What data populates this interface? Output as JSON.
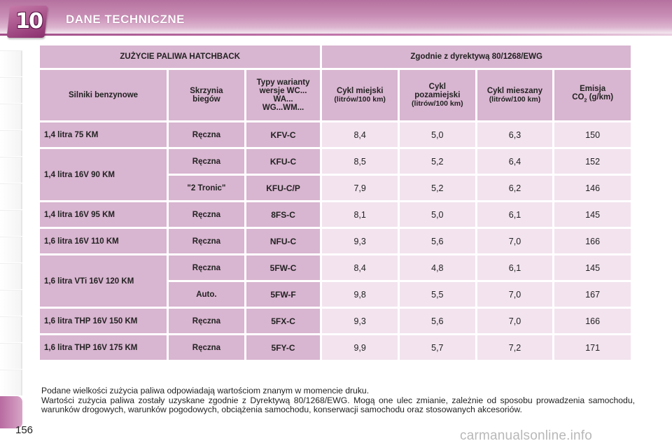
{
  "header": {
    "chapter": "10",
    "title": "DANE TECHNICZNE"
  },
  "table": {
    "top_headers": [
      "ZUŻYCIE PALIWA HATCHBACK",
      "Zgodnie z dyrektywą 80/1268/EWG"
    ],
    "col_headers": {
      "engine": "Silniki benzynowe",
      "gearbox": "Skrzynia biegów",
      "types": "Typy warianty wersje WC... WA... WG...WM...",
      "urban": "Cykl miejski",
      "urban_unit": "(litrów/100 km)",
      "extra": "Cykl pozamiejski",
      "extra_unit": "(litrów/100 km)",
      "combined": "Cykl mieszany",
      "combined_unit": "(litrów/100 km)",
      "emission": "Emisja",
      "emission_co": "CO",
      "emission_sub": "2",
      "emission_unit": "(g/km)"
    },
    "engines": [
      {
        "name": "1,4 litra 75 KM",
        "rows": [
          {
            "gearbox": "Ręczna",
            "code": "KFV-C",
            "urban": "8,4",
            "extra": "5,0",
            "combined": "6,3",
            "co2": "150"
          }
        ]
      },
      {
        "name": "1,4 litra 16V 90 KM",
        "rows": [
          {
            "gearbox": "Ręczna",
            "code": "KFU-C",
            "urban": "8,5",
            "extra": "5,2",
            "combined": "6,4",
            "co2": "152"
          },
          {
            "gearbox": "\"2 Tronic\"",
            "code": "KFU-C/P",
            "urban": "7,9",
            "extra": "5,2",
            "combined": "6,2",
            "co2": "146"
          }
        ]
      },
      {
        "name": "1,4 litra 16V 95 KM",
        "rows": [
          {
            "gearbox": "Ręczna",
            "code": "8FS-C",
            "urban": "8,1",
            "extra": "5,0",
            "combined": "6,1",
            "co2": "145"
          }
        ]
      },
      {
        "name": "1,6 litra 16V 110 KM",
        "rows": [
          {
            "gearbox": "Ręczna",
            "code": "NFU-C",
            "urban": "9,3",
            "extra": "5,6",
            "combined": "7,0",
            "co2": "166"
          }
        ]
      },
      {
        "name": "1,6 litra VTi 16V 120 KM",
        "rows": [
          {
            "gearbox": "Ręczna",
            "code": "5FW-C",
            "urban": "8,4",
            "extra": "4,8",
            "combined": "6,1",
            "co2": "145"
          },
          {
            "gearbox": "Auto.",
            "code": "5FW-F",
            "urban": "9,8",
            "extra": "5,5",
            "combined": "7,0",
            "co2": "167"
          }
        ]
      },
      {
        "name": "1,6 litra THP 16V 150 KM",
        "rows": [
          {
            "gearbox": "Ręczna",
            "code": "5FX-C",
            "urban": "9,3",
            "extra": "5,6",
            "combined": "7,0",
            "co2": "166"
          }
        ]
      },
      {
        "name": "1,6 litra THP 16V 175 KM",
        "rows": [
          {
            "gearbox": "Ręczna",
            "code": "5FY-C",
            "urban": "9,9",
            "extra": "5,7",
            "combined": "7,2",
            "co2": "171"
          }
        ]
      }
    ]
  },
  "note": {
    "line1": "Podane wielkości zużycia paliwa odpowiadają wartościom znanym w momencie druku.",
    "line2": "Wartości zużycia paliwa zostały uzyskane zgodnie z Dyrektywą 80/1268/EWG. Mogą one ulec zmianie, zależnie od sposobu prowadzenia samochodu, warunków drogowych, warunków pogodowych, obciążenia samochodu, konserwacji samochodu oraz stosowanych akcesoriów."
  },
  "page_number": "156",
  "watermark": "carmanualsonline.info",
  "colors": {
    "header_accent": "#b5719f",
    "cell_dark": "#d8b5d0",
    "cell_light": "#f2e3ee"
  }
}
